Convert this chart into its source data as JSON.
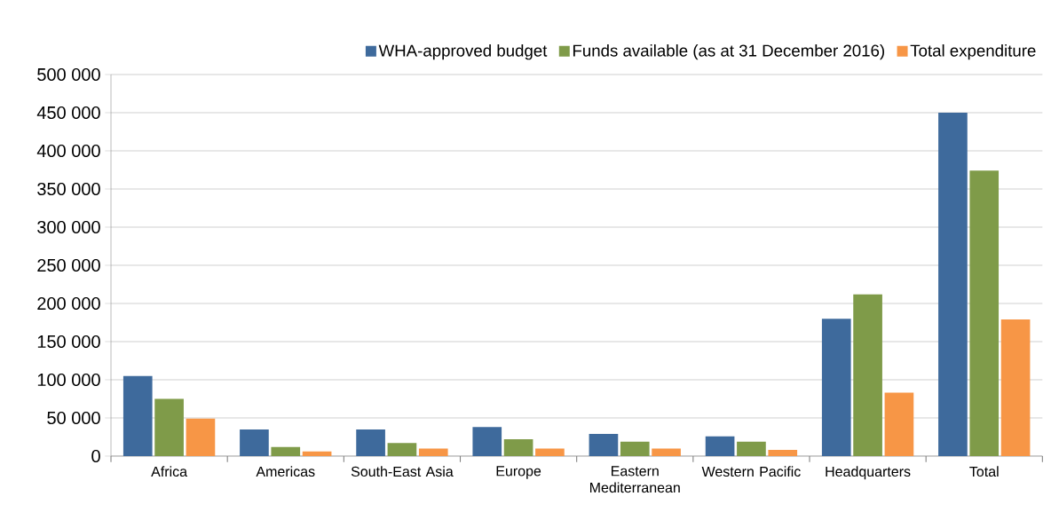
{
  "chart_data": {
    "type": "bar",
    "categories": [
      "Africa",
      "Americas",
      "South-East Asia",
      "Europe",
      "Eastern Mediterranean",
      "Western Pacific",
      "Headquarters",
      "Total"
    ],
    "series": [
      {
        "name": "WHA-approved budget",
        "color": "#3e6a9c",
        "values": [
          105000,
          35000,
          35000,
          38000,
          29000,
          26000,
          180000,
          450000
        ]
      },
      {
        "name": "Funds available (as at 31 December 2016)",
        "color": "#7f9b49",
        "values": [
          75000,
          12000,
          17000,
          22000,
          19000,
          19000,
          212000,
          374000
        ]
      },
      {
        "name": "Total expenditure",
        "color": "#f79646",
        "values": [
          49000,
          6000,
          10000,
          10000,
          10000,
          8000,
          83000,
          179000
        ]
      }
    ],
    "ylim": [
      0,
      500000
    ],
    "yticks": [
      {
        "value": 0,
        "label": "0"
      },
      {
        "value": 50000,
        "label": "50 000"
      },
      {
        "value": 100000,
        "label": "100 000"
      },
      {
        "value": 150000,
        "label": "150 000"
      },
      {
        "value": 200000,
        "label": "200 000"
      },
      {
        "value": 250000,
        "label": "250 000"
      },
      {
        "value": 300000,
        "label": "300 000"
      },
      {
        "value": 350000,
        "label": "350 000"
      },
      {
        "value": 400000,
        "label": "400 000"
      },
      {
        "value": 450000,
        "label": "450 000"
      },
      {
        "value": 500000,
        "label": "500 000"
      }
    ],
    "grid": "y",
    "legend": "top right"
  }
}
